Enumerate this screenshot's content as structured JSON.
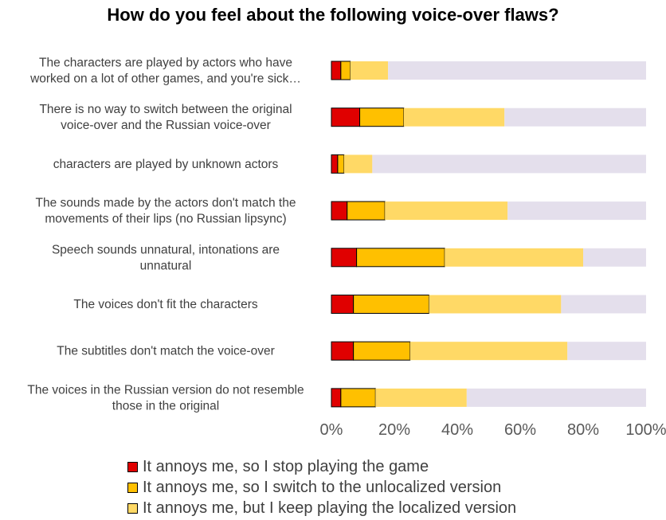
{
  "chart_data": {
    "type": "bar",
    "orientation": "horizontal",
    "stacked": true,
    "title": "How do you feel about the following voice‑over flaws?",
    "categories": [
      "The characters are played by actors who have worked on a lot of other games, and you're sick…",
      "There is no way to switch between the original voice-over and the Russian voice-over",
      "characters are played by unknown actors",
      "The sounds made by the actors don't match the movements of their lips (no Russian lipsync)",
      "Speech sounds unnatural, intonations are unnatural",
      "The voices don't fit the characters",
      "The subtitles don't match the voice-over",
      "The voices in the Russian version do not resemble those in the original"
    ],
    "series": [
      {
        "name": "It annoys me, so I stop playing the game",
        "color": "#e00000",
        "values": [
          3,
          9,
          2,
          5,
          8,
          7,
          7,
          3
        ]
      },
      {
        "name": "It annoys me, so I switch to the unlocalized version",
        "color": "#ffc000",
        "values": [
          3,
          14,
          2,
          12,
          28,
          24,
          18,
          11
        ]
      },
      {
        "name": "It annoys me, but I keep playing the localized version",
        "color": "#ffd966",
        "values": [
          12,
          32,
          9,
          39,
          44,
          42,
          50,
          29
        ]
      },
      {
        "color": "#e4dfec",
        "values": [
          82,
          45,
          87,
          44,
          20,
          27,
          25,
          57
        ]
      }
    ],
    "xlim": [
      0,
      100
    ],
    "x_ticks": [
      "0%",
      "20%",
      "40%",
      "60%",
      "80%",
      "100%"
    ],
    "legend_position": "bottom",
    "grid": false
  }
}
